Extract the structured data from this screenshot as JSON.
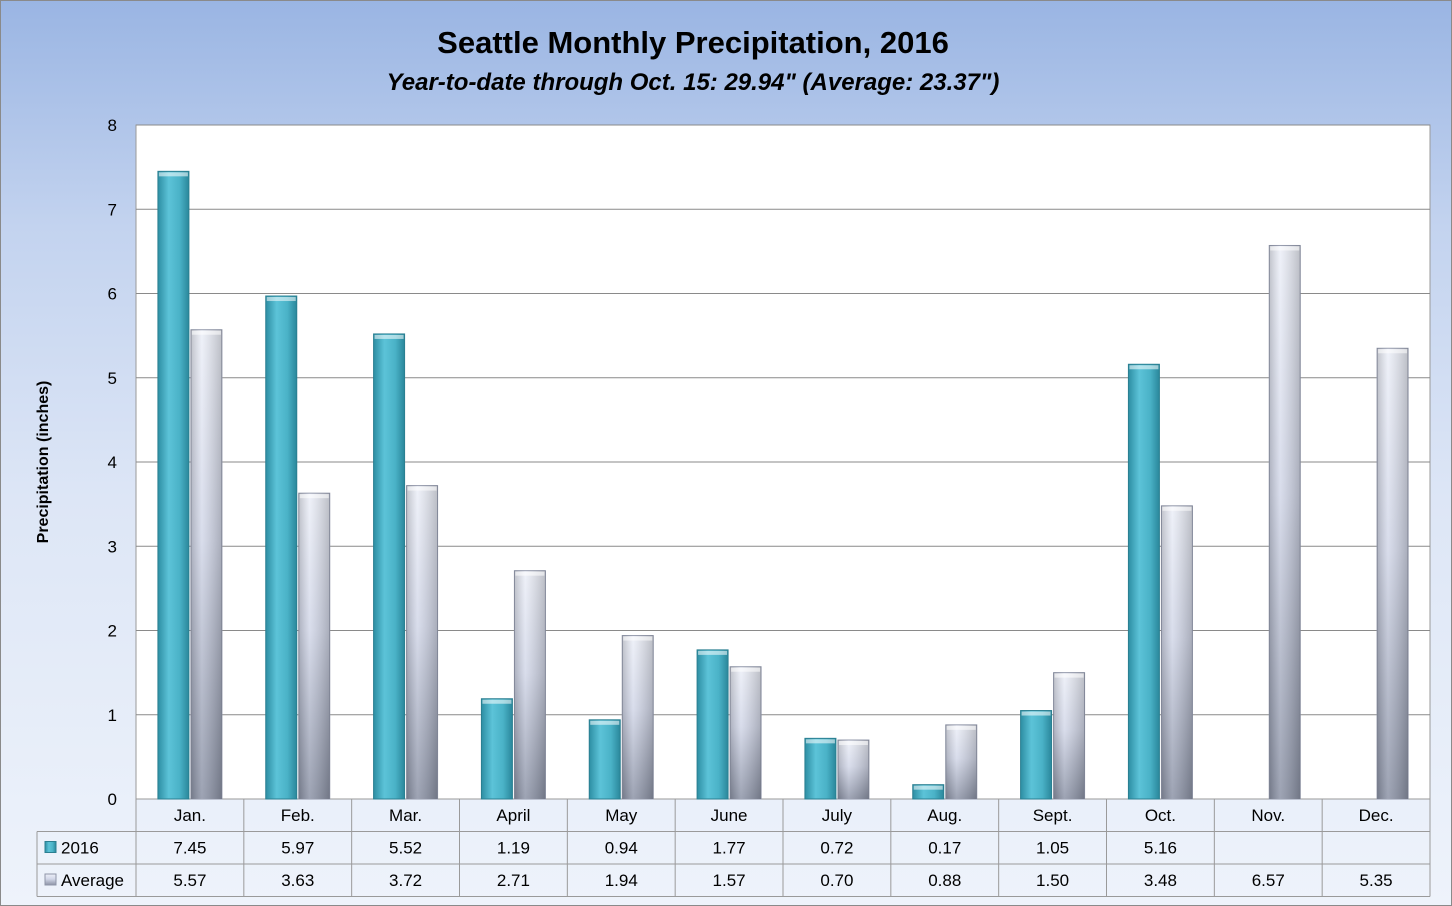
{
  "chart_data": {
    "type": "bar",
    "title": "Seattle Monthly Precipitation, 2016",
    "subtitle": "Year-to-date through Oct. 15: 29.94\" (Average: 23.37\")",
    "xlabel": "",
    "ylabel": "Precipitation (inches)",
    "ylim": [
      0,
      8
    ],
    "yticks": [
      0,
      1,
      2,
      3,
      4,
      5,
      6,
      7,
      8
    ],
    "grid": true,
    "legend": "data-table-left",
    "categories": [
      "Jan.",
      "Feb.",
      "Mar.",
      "April",
      "May",
      "June",
      "July",
      "Aug.",
      "Sept.",
      "Oct.",
      "Nov.",
      "Dec."
    ],
    "series": [
      {
        "name": "2016",
        "color": "#4bb3c8",
        "values": [
          7.45,
          5.97,
          5.52,
          1.19,
          0.94,
          1.77,
          0.72,
          0.17,
          1.05,
          5.16,
          null,
          null
        ],
        "labels": [
          "7.45",
          "5.97",
          "5.52",
          "1.19",
          "0.94",
          "1.77",
          "0.72",
          "0.17",
          "1.05",
          "5.16",
          "",
          ""
        ]
      },
      {
        "name": "Average",
        "color": "#c9cfe2",
        "values": [
          5.57,
          3.63,
          3.72,
          2.71,
          1.94,
          1.57,
          0.7,
          0.88,
          1.5,
          3.48,
          6.57,
          5.35
        ],
        "labels": [
          "5.57",
          "3.63",
          "3.72",
          "2.71",
          "1.94",
          "1.57",
          "0.70",
          "0.88",
          "1.50",
          "3.48",
          "6.57",
          "5.35"
        ]
      }
    ]
  }
}
